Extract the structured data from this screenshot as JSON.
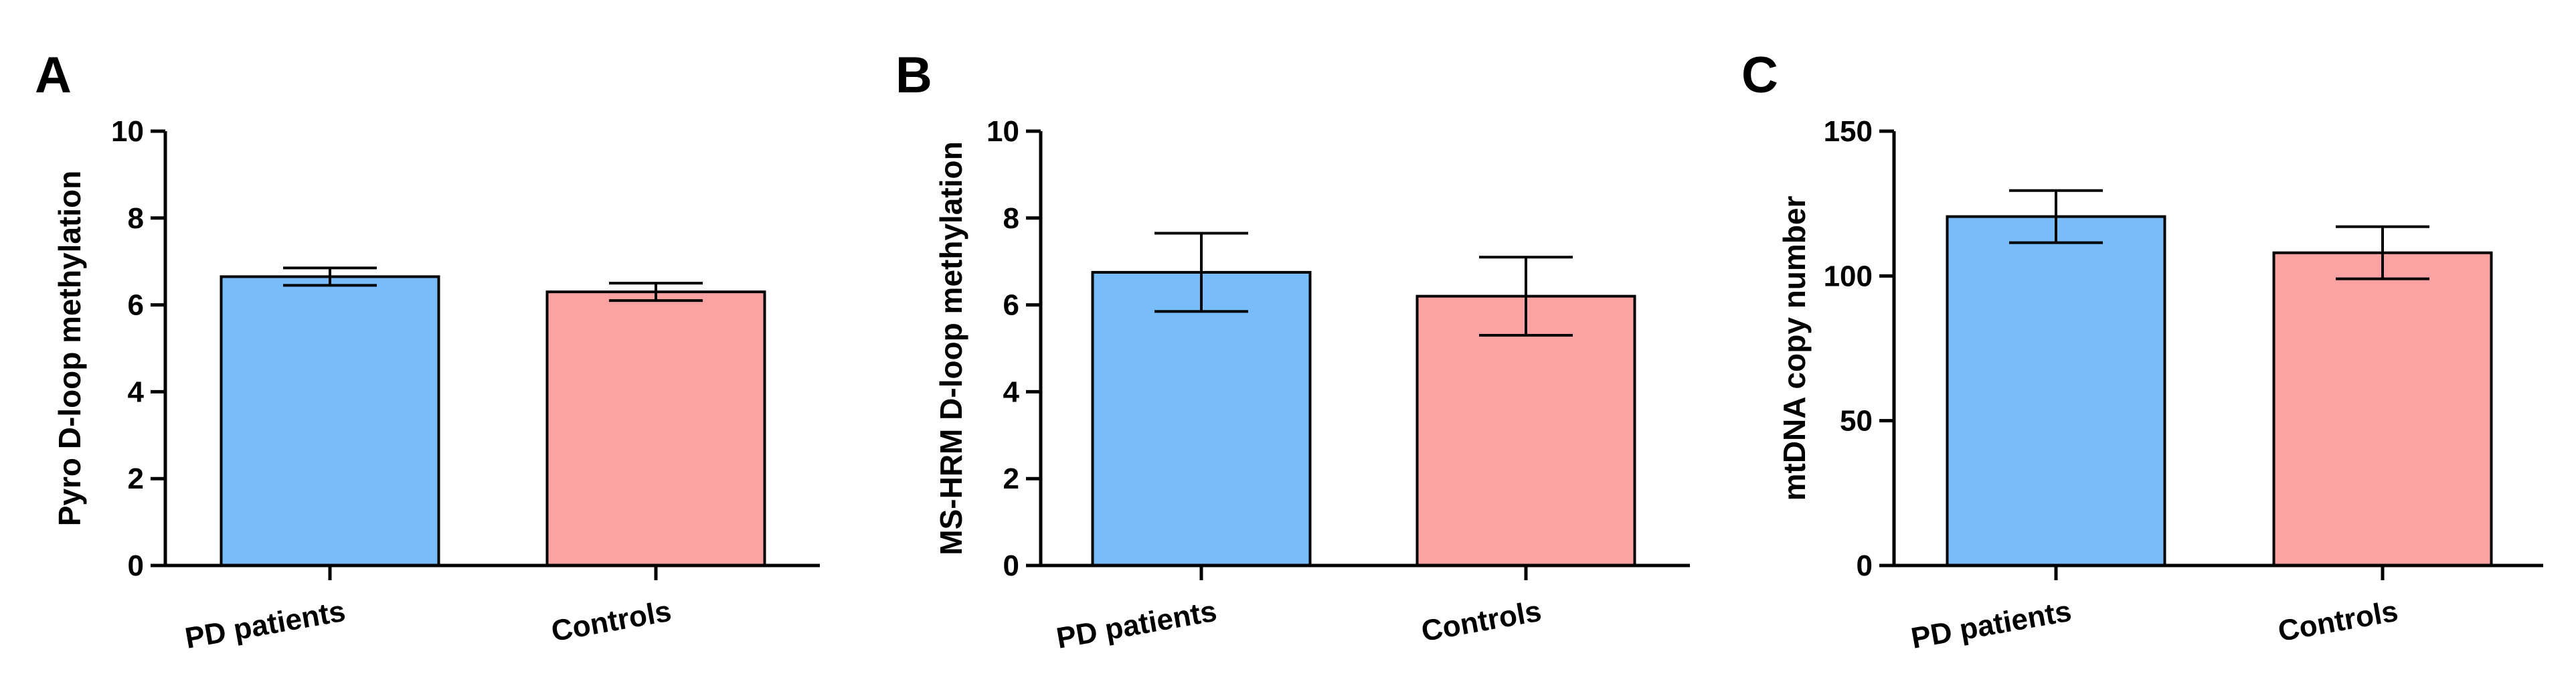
{
  "chart_data": [
    {
      "panel": "A",
      "type": "bar",
      "ylabel": "Pyro D-loop methylation",
      "xlabel": "",
      "ylim": [
        0,
        10
      ],
      "yticks": [
        0,
        2,
        4,
        6,
        8,
        10
      ],
      "categories": [
        "PD patients",
        "Controls"
      ],
      "values": [
        6.65,
        6.3
      ],
      "errors": [
        0.2,
        0.2
      ],
      "colors": [
        "#78bdfa",
        "#fba3a3"
      ]
    },
    {
      "panel": "B",
      "type": "bar",
      "ylabel": "MS-HRM D-loop methylation",
      "xlabel": "",
      "ylim": [
        0,
        10
      ],
      "yticks": [
        0,
        2,
        4,
        6,
        8,
        10
      ],
      "categories": [
        "PD patients",
        "Controls"
      ],
      "values": [
        6.75,
        6.2
      ],
      "errors": [
        0.9,
        0.9
      ],
      "colors": [
        "#78bdfa",
        "#fba3a3"
      ]
    },
    {
      "panel": "C",
      "type": "bar",
      "ylabel": "mtDNA copy number",
      "xlabel": "",
      "ylim": [
        0,
        150
      ],
      "yticks": [
        0,
        50,
        100,
        150
      ],
      "categories": [
        "PD patients",
        "Controls"
      ],
      "values": [
        120.5,
        108
      ],
      "errors": [
        9,
        9
      ],
      "colors": [
        "#78bdfa",
        "#fba3a3"
      ]
    }
  ]
}
